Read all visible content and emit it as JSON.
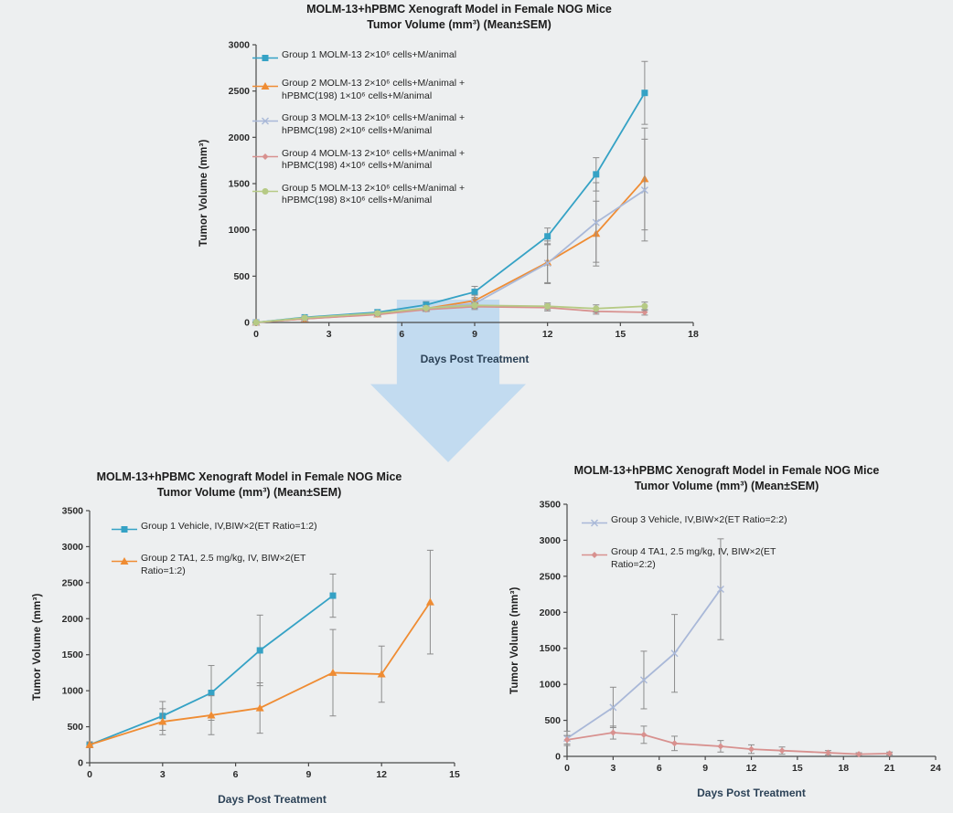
{
  "page": {
    "background": "#edeff0"
  },
  "arrow": {
    "color": "rgba(183, 214, 240, 0.8)"
  },
  "chart_data": [
    {
      "type": "line",
      "title_line1": "MOLM-13+hPBMC Xenograft Model in Female NOG Mice",
      "title_line2": "Tumor Volume (mm³) (Mean±SEM)",
      "xlabel": "Days Post Treatment",
      "ylabel": "Tumor Volume (mm³)",
      "xlim": [
        0,
        18
      ],
      "xticks": [
        0,
        3,
        6,
        9,
        12,
        15,
        18
      ],
      "ylim": [
        0,
        3000
      ],
      "yticks": [
        0,
        500,
        1000,
        1500,
        2000,
        2500,
        3000
      ],
      "grid": false,
      "legend_position": "upper-left",
      "series": [
        {
          "name": "Group 1 MOLM-13  2×10⁶ cells+M/animal",
          "color": "#35a2c5",
          "marker": "square",
          "x": [
            0,
            2,
            5,
            7,
            9,
            12,
            14,
            16
          ],
          "y": [
            0,
            55,
            110,
            190,
            330,
            930,
            1600,
            2480
          ],
          "err": [
            0,
            15,
            20,
            35,
            60,
            90,
            180,
            340
          ]
        },
        {
          "name": "Group 2 MOLM-13  2×10⁶ cells+M/animal + hPBMC(198) 1×10⁶ cells+M/animal",
          "color": "#ef8c33",
          "marker": "triangle",
          "x": [
            0,
            2,
            5,
            7,
            9,
            12,
            14,
            16
          ],
          "y": [
            0,
            40,
            90,
            150,
            235,
            650,
            960,
            1550
          ],
          "err": [
            0,
            10,
            15,
            30,
            60,
            230,
            350,
            550
          ]
        },
        {
          "name": "Group 3 MOLM-13  2×10⁶ cells+M/animal + hPBMC(198) 2×10⁶ cells+M/animal",
          "color": "#a9b8d8",
          "marker": "x",
          "x": [
            0,
            2,
            5,
            7,
            9,
            12,
            14,
            16
          ],
          "y": [
            0,
            45,
            95,
            150,
            205,
            640,
            1080,
            1430
          ],
          "err": [
            0,
            10,
            15,
            25,
            50,
            210,
            430,
            550
          ]
        },
        {
          "name": "Group 4 MOLM-13  2×10⁶ cells+M/animal + hPBMC(198) 4×10⁶ cells+M/animal",
          "color": "#d8918f",
          "marker": "diamond",
          "x": [
            0,
            2,
            5,
            7,
            9,
            12,
            14,
            16
          ],
          "y": [
            0,
            40,
            85,
            140,
            170,
            160,
            120,
            110
          ],
          "err": [
            0,
            8,
            12,
            20,
            30,
            35,
            30,
            30
          ]
        },
        {
          "name": "Group 5 MOLM-13  2×10⁶ cells+M/animal + hPBMC(198) 8×10⁶ cells+M/animal",
          "color": "#b6ca85",
          "marker": "circle",
          "x": [
            0,
            2,
            5,
            7,
            9,
            12,
            14,
            16
          ],
          "y": [
            0,
            50,
            100,
            155,
            185,
            175,
            150,
            175
          ],
          "err": [
            0,
            8,
            12,
            20,
            30,
            35,
            40,
            45
          ]
        }
      ]
    },
    {
      "type": "line",
      "title_line1": "MOLM-13+hPBMC Xenograft Model in Female NOG Mice",
      "title_line2": "Tumor Volume (mm³) (Mean±SEM)",
      "xlabel": "Days Post Treatment",
      "ylabel": "Tumor Volume (mm³)",
      "xlim": [
        0,
        15
      ],
      "xticks": [
        0,
        3,
        6,
        9,
        12,
        15
      ],
      "ylim": [
        0,
        3500
      ],
      "yticks": [
        0,
        500,
        1000,
        1500,
        2000,
        2500,
        3000,
        3500
      ],
      "grid": false,
      "legend_position": "upper-left",
      "series": [
        {
          "name": "Group 1 Vehicle, IV,BIW×2(ET Ratio=1:2)",
          "color": "#35a2c5",
          "marker": "square",
          "x": [
            0,
            3,
            5,
            7,
            10
          ],
          "y": [
            250,
            650,
            970,
            1560,
            2320
          ],
          "err": [
            40,
            200,
            380,
            490,
            300
          ]
        },
        {
          "name": "Group 2 TA1, 2.5 mg/kg, IV, BIW×2(ET Ratio=1:2)",
          "color": "#ef8c33",
          "marker": "triangle",
          "x": [
            0,
            3,
            5,
            7,
            10,
            12,
            14
          ],
          "y": [
            250,
            570,
            660,
            760,
            1250,
            1230,
            2230
          ],
          "err": [
            40,
            180,
            270,
            350,
            600,
            390,
            720
          ]
        }
      ]
    },
    {
      "type": "line",
      "title_line1": "MOLM-13+hPBMC Xenograft Model in Female NOG Mice",
      "title_line2": "Tumor Volume (mm³) (Mean±SEM)",
      "xlabel": "Days Post Treatment",
      "ylabel": "Tumor Volume (mm³)",
      "xlim": [
        0,
        24
      ],
      "xticks": [
        0,
        3,
        6,
        9,
        12,
        15,
        18,
        21,
        24
      ],
      "ylim": [
        0,
        3500
      ],
      "yticks": [
        0,
        500,
        1000,
        1500,
        2000,
        2500,
        3000,
        3500
      ],
      "grid": false,
      "legend_position": "upper-left",
      "series": [
        {
          "name": "Group 3 Vehicle, IV,BIW×2(ET Ratio=2:2)",
          "color": "#a9b8d8",
          "marker": "x",
          "x": [
            0,
            3,
            5,
            7,
            10
          ],
          "y": [
            250,
            680,
            1060,
            1430,
            2320
          ],
          "err": [
            100,
            280,
            400,
            540,
            700
          ]
        },
        {
          "name": "Group 4 TA1, 2.5 mg/kg, IV, BIW×2(ET Ratio=2:2)",
          "color": "#d8918f",
          "marker": "diamond",
          "x": [
            0,
            3,
            5,
            7,
            10,
            12,
            14,
            17,
            19,
            21
          ],
          "y": [
            230,
            330,
            300,
            180,
            140,
            100,
            80,
            50,
            30,
            40
          ],
          "err": [
            60,
            90,
            120,
            100,
            80,
            60,
            50,
            30,
            20,
            20
          ]
        }
      ]
    }
  ]
}
